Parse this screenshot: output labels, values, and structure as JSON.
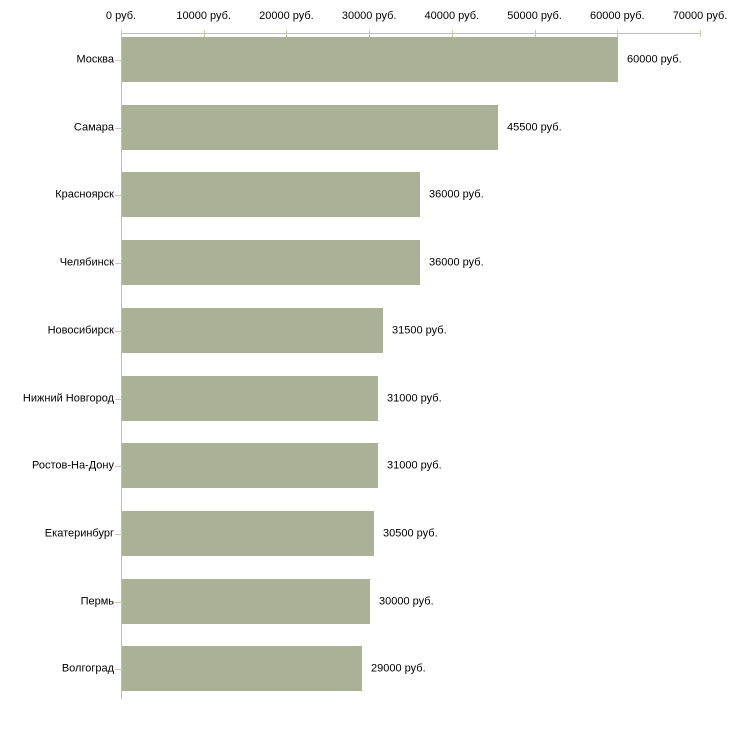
{
  "chart_data": {
    "type": "bar",
    "orientation": "horizontal",
    "categories": [
      "Москва",
      "Самара",
      "Красноярск",
      "Челябинск",
      "Новосибирск",
      "Нижний Новгород",
      "Ростов-На-Дону",
      "Екатеринбург",
      "Пермь",
      "Волгоград"
    ],
    "values": [
      60000,
      45500,
      36000,
      36000,
      31500,
      31000,
      31000,
      30500,
      30000,
      29000
    ],
    "value_labels": [
      "60000 руб.",
      "45500 руб.",
      "36000 руб.",
      "36000 руб.",
      "31500 руб.",
      "31000 руб.",
      "31000 руб.",
      "30500 руб.",
      "30000 руб.",
      "29000 руб."
    ],
    "x_ticks": [
      0,
      10000,
      20000,
      30000,
      40000,
      50000,
      60000,
      70000
    ],
    "x_tick_labels": [
      "0 руб.",
      "10000 руб.",
      "20000 руб.",
      "30000 руб.",
      "40000 руб.",
      "50000 руб.",
      "60000 руб.",
      "70000 руб."
    ],
    "xlim": [
      0,
      70000
    ],
    "unit": "руб.",
    "grid": false,
    "legend": false,
    "axis_position": "top",
    "colors": {
      "bar": "#ABB197",
      "axis_line": "#BDBDBD",
      "tick_mark": "#C9C9A5",
      "text": "#000000",
      "background": "#FFFFFF"
    }
  }
}
